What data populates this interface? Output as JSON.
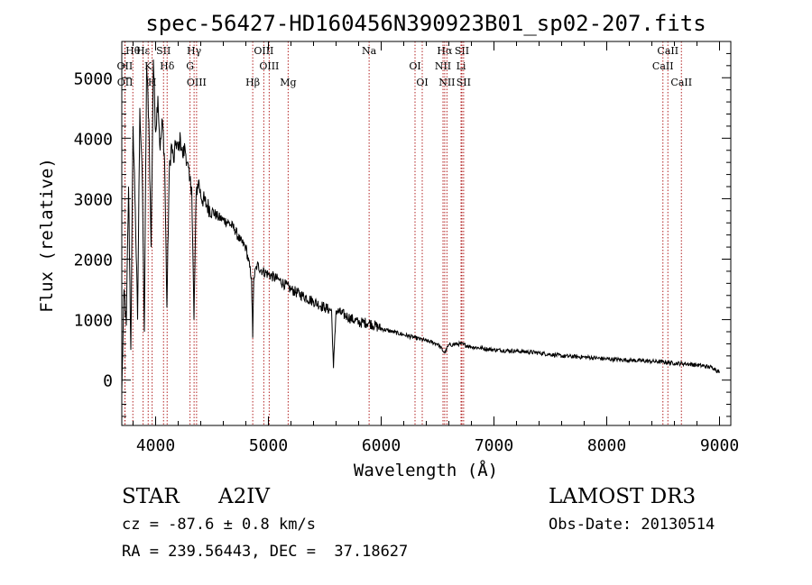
{
  "chart_data": {
    "type": "line",
    "title": "spec-56427-HD160456N390923B01_sp02-207.fits",
    "xlabel": "Wavelength (Å)",
    "ylabel": "Flux (relative)",
    "xlim": [
      3700,
      9100
    ],
    "ylim": [
      -750,
      5600
    ],
    "x_ticks": [
      4000,
      5000,
      6000,
      7000,
      8000,
      9000
    ],
    "y_ticks": [
      0,
      1000,
      2000,
      3000,
      4000,
      5000
    ],
    "series": [
      {
        "name": "flux",
        "x": [
          3700,
          3720,
          3740,
          3760,
          3780,
          3800,
          3820,
          3840,
          3860,
          3880,
          3900,
          3920,
          3940,
          3960,
          3980,
          4000,
          4020,
          4040,
          4060,
          4080,
          4100,
          4120,
          4140,
          4160,
          4180,
          4200,
          4220,
          4240,
          4260,
          4280,
          4300,
          4320,
          4340,
          4360,
          4380,
          4400,
          4450,
          4500,
          4550,
          4600,
          4650,
          4700,
          4750,
          4800,
          4850,
          4861,
          4870,
          4900,
          4950,
          5000,
          5100,
          5200,
          5300,
          5400,
          5500,
          5560,
          5577,
          5600,
          5700,
          5800,
          5890,
          6000,
          6100,
          6200,
          6300,
          6400,
          6500,
          6563,
          6600,
          6700,
          6800,
          7000,
          7200,
          7400,
          7600,
          7800,
          8000,
          8200,
          8400,
          8500,
          8600,
          8700,
          8800,
          8900,
          8950,
          9000
        ],
        "values": [
          -200,
          1500,
          900,
          3200,
          500,
          4200,
          2800,
          1000,
          4500,
          3500,
          800,
          5200,
          4300,
          2200,
          5300,
          4100,
          4700,
          3800,
          4300,
          3600,
          1200,
          3400,
          3900,
          3600,
          3950,
          3800,
          4000,
          3700,
          3850,
          3600,
          3300,
          3200,
          1000,
          3100,
          3300,
          3050,
          2900,
          2800,
          2700,
          2650,
          2600,
          2500,
          2300,
          2200,
          1700,
          700,
          1700,
          1900,
          1800,
          1750,
          1650,
          1500,
          1400,
          1300,
          1200,
          1150,
          200,
          1150,
          1050,
          950,
          950,
          850,
          800,
          750,
          700,
          650,
          600,
          450,
          580,
          600,
          550,
          500,
          480,
          450,
          400,
          380,
          350,
          330,
          310,
          300,
          280,
          270,
          250,
          220,
          200,
          120
        ]
      }
    ],
    "line_markers": [
      {
        "label": "Hθ",
        "wavelength": 3798
      },
      {
        "label": "OII",
        "wavelength": 3727
      },
      {
        "label": "OII",
        "wavelength": 3729
      },
      {
        "label": "Hε",
        "wavelength": 3889
      },
      {
        "label": "K",
        "wavelength": 3934
      },
      {
        "label": "H",
        "wavelength": 3969
      },
      {
        "label": "SII",
        "wavelength": 4070
      },
      {
        "label": "Hδ",
        "wavelength": 4102
      },
      {
        "label": "OIII",
        "wavelength": 4363
      },
      {
        "label": "Hγ",
        "wavelength": 4341
      },
      {
        "label": "G",
        "wavelength": 4305
      },
      {
        "label": "Hβ",
        "wavelength": 4861
      },
      {
        "label": "OIII",
        "wavelength": 4959
      },
      {
        "label": "OIII",
        "wavelength": 5007
      },
      {
        "label": "Mg",
        "wavelength": 5175
      },
      {
        "label": "Na",
        "wavelength": 5893
      },
      {
        "label": "OI",
        "wavelength": 6300
      },
      {
        "label": "OI",
        "wavelength": 6364
      },
      {
        "label": "Hα",
        "wavelength": 6563
      },
      {
        "label": "NII",
        "wavelength": 6548
      },
      {
        "label": "NII",
        "wavelength": 6583
      },
      {
        "label": "SII",
        "wavelength": 6716
      },
      {
        "label": "Li",
        "wavelength": 6708
      },
      {
        "label": "SII",
        "wavelength": 6731
      },
      {
        "label": "CaII",
        "wavelength": 8542
      },
      {
        "label": "CaII",
        "wavelength": 8498
      },
      {
        "label": "CaII",
        "wavelength": 8662
      }
    ]
  },
  "footer": {
    "class": "STAR",
    "subclass": "A2IV",
    "survey": "LAMOST DR3",
    "cz": "cz = -87.6 ± 0.8 km/s",
    "obs_date": "Obs-Date: 20130514",
    "radec": "RA = 239.56443, DEC =  37.18627"
  }
}
